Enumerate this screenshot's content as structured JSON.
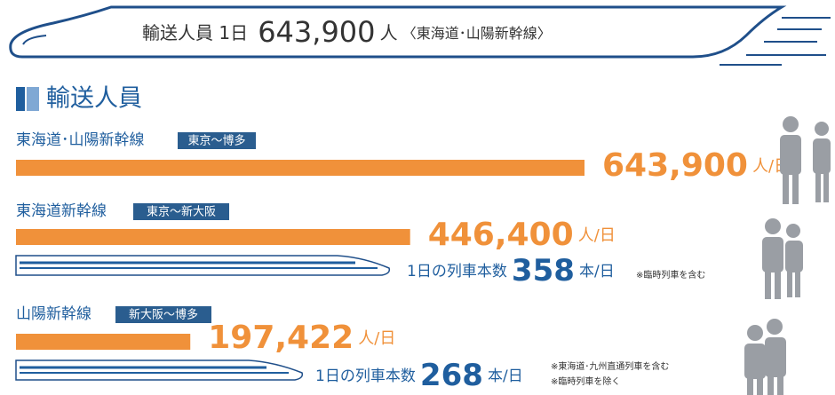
{
  "banner": {
    "label": "輸送人員 1日",
    "value": "643,900",
    "unit": "人",
    "route": "〈東海道･山陽新幹線〉"
  },
  "section_title": "輸送人員",
  "rows": [
    {
      "line": "東海道･山陽新幹線",
      "route": "東京〜博多",
      "value": 643900,
      "value_label": "643,900",
      "unit": "人/日"
    },
    {
      "line": "東海道新幹線",
      "route": "東京〜新大阪",
      "value": 446400,
      "value_label": "446,400",
      "unit": "人/日",
      "trains": {
        "label": "1日の列車本数",
        "value": 358,
        "unit": "本/日",
        "notes": [
          "※臨時列車を含む"
        ]
      }
    },
    {
      "line": "山陽新幹線",
      "route": "新大阪〜博多",
      "value": 197422,
      "value_label": "197,422",
      "unit": "人/日",
      "trains": {
        "label": "1日の列車本数",
        "value": 268,
        "unit": "本/日",
        "notes": [
          "※東海道･九州直通列車を含む",
          "※臨時列車を除く"
        ]
      }
    }
  ]
}
